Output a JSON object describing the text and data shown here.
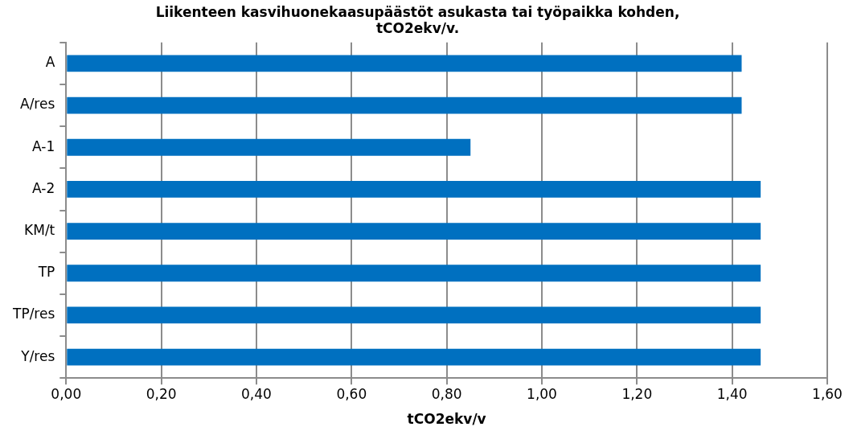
{
  "chart_data": {
    "type": "bar",
    "orientation": "horizontal",
    "title": [
      "Liikenteen kasvihuonekaasupäästöt asukasta tai työpaikka kohden,",
      "tCO2ekv/v."
    ],
    "xlabel": "tCO2ekv/v",
    "categories": [
      "A",
      "A/res",
      "A-1",
      "A-2",
      "KM/t",
      "TP",
      "TP/res",
      "Y/res"
    ],
    "values": [
      1.42,
      1.42,
      0.85,
      1.46,
      1.46,
      1.46,
      1.46,
      1.46
    ],
    "color": "#0070c0",
    "xlim": [
      0,
      1.6
    ],
    "xticks": [
      {
        "value": 0,
        "label": "0,00"
      },
      {
        "value": 0.2,
        "label": "0,20"
      },
      {
        "value": 0.4,
        "label": "0,40"
      },
      {
        "value": 0.6,
        "label": "0,60"
      },
      {
        "value": 0.8,
        "label": "0,80"
      },
      {
        "value": 1.0,
        "label": "1,00"
      },
      {
        "value": 1.2,
        "label": "1,20"
      },
      {
        "value": 1.4,
        "label": "1,40"
      },
      {
        "value": 1.6,
        "label": "1,60"
      }
    ],
    "grid": "x",
    "legend": false
  }
}
